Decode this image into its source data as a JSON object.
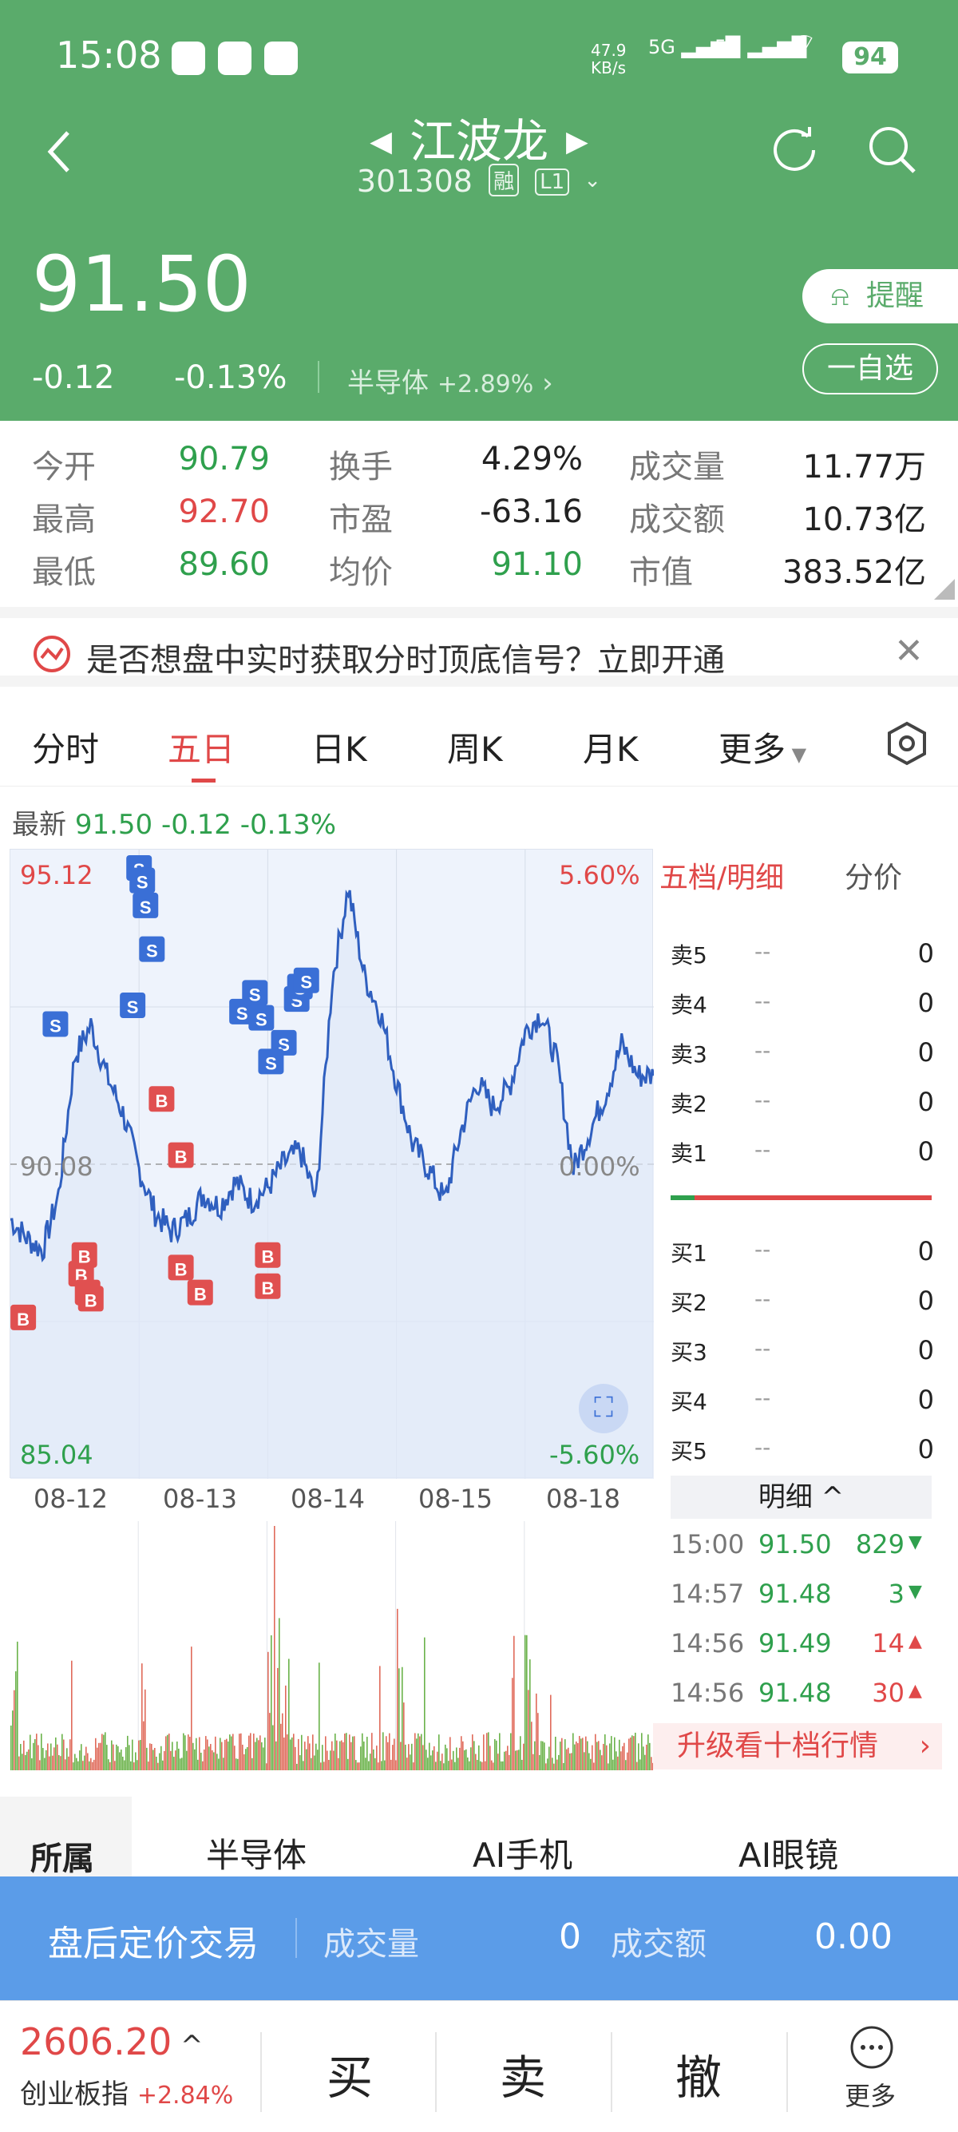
{
  "status": {
    "time": "15:08",
    "net_speed": "47.9\nKB/s",
    "net_speed_top": "47.9",
    "net_speed_bot": "KB/s",
    "signal1": "5G",
    "signal2": "5G",
    "battery": "94"
  },
  "header": {
    "name": "江波龙",
    "code": "301308",
    "tag_margin": "融",
    "tag_level": "L1",
    "price": "91.50",
    "change": "-0.12",
    "change_pct": "-0.13%",
    "sector_name": "半导体",
    "sector_change": "+2.89%",
    "remind_label": "提醒",
    "watch_label": "一自选"
  },
  "stats": {
    "row1": {
      "l1": "今开",
      "v1": "90.79",
      "l2": "换手",
      "v2": "4.29%",
      "l3": "成交量",
      "v3": "11.77万"
    },
    "row2": {
      "l1": "最高",
      "v1": "92.70",
      "l2": "市盈",
      "v2": "-63.16",
      "l3": "成交额",
      "v3": "10.73亿"
    },
    "row3": {
      "l1": "最低",
      "v1": "89.60",
      "l2": "均价",
      "v2": "91.10",
      "l3": "市值",
      "v3": "383.52亿"
    }
  },
  "banner": {
    "text": "是否想盘中实时获取分时顶底信号？立即开通"
  },
  "tabs": [
    "分时",
    "五日",
    "日K",
    "周K",
    "月K",
    "更多"
  ],
  "latest": {
    "label": "最新",
    "price": "91.50",
    "change": "-0.12",
    "pct": "-0.13%"
  },
  "chart_data": {
    "type": "line",
    "y_max": "95.12",
    "y_mid": "90.08",
    "y_min": "85.04",
    "pct_max": "5.60%",
    "pct_mid": "0.00%",
    "pct_min": "-5.60%",
    "ylim": [
      85.04,
      95.12
    ],
    "dates": [
      "08-12",
      "08-13",
      "08-14",
      "08-15",
      "08-18"
    ],
    "x": [
      0,
      5,
      10,
      15,
      20,
      25,
      30,
      35,
      40,
      45,
      50,
      55,
      60,
      65,
      70,
      75,
      80,
      85,
      90,
      95,
      100,
      105,
      110,
      115,
      120,
      125,
      130,
      135,
      140,
      145,
      150,
      155,
      160,
      165,
      170,
      175,
      180,
      185,
      190,
      195,
      200
    ],
    "values": [
      89.2,
      88.9,
      88.7,
      89.6,
      91.8,
      92.3,
      91.5,
      90.9,
      90.0,
      89.3,
      89.0,
      89.2,
      89.6,
      89.4,
      89.8,
      89.5,
      89.7,
      90.1,
      90.3,
      89.5,
      93.0,
      94.5,
      93.1,
      92.5,
      91.4,
      90.4,
      90.0,
      89.5,
      90.6,
      91.4,
      91.0,
      91.3,
      92.2,
      92.5,
      91.7,
      90.0,
      90.6,
      91.2,
      92.0,
      91.5,
      91.5
    ],
    "buy_signals": 10,
    "sell_signals": 14,
    "avg_line": 90.08
  },
  "orderbook": {
    "header_active": "五档/明细",
    "header_other": "分价",
    "sells": [
      {
        "label": "卖5",
        "price": "--",
        "qty": "0"
      },
      {
        "label": "卖4",
        "price": "--",
        "qty": "0"
      },
      {
        "label": "卖3",
        "price": "--",
        "qty": "0"
      },
      {
        "label": "卖2",
        "price": "--",
        "qty": "0"
      },
      {
        "label": "卖1",
        "price": "--",
        "qty": "0"
      }
    ],
    "buys": [
      {
        "label": "买1",
        "price": "--",
        "qty": "0"
      },
      {
        "label": "买2",
        "price": "--",
        "qty": "0"
      },
      {
        "label": "买3",
        "price": "--",
        "qty": "0"
      },
      {
        "label": "买4",
        "price": "--",
        "qty": "0"
      },
      {
        "label": "买5",
        "price": "--",
        "qty": "0"
      }
    ],
    "detail_label": "明细",
    "ticks": [
      {
        "time": "15:00",
        "price": "91.50",
        "qty": "829",
        "dir": "down"
      },
      {
        "time": "14:57",
        "price": "91.48",
        "qty": "3",
        "dir": "down"
      },
      {
        "time": "14:56",
        "price": "91.49",
        "qty": "14",
        "dir": "up"
      },
      {
        "time": "14:56",
        "price": "91.48",
        "qty": "30",
        "dir": "up"
      }
    ],
    "upgrade": "升级看十档行情"
  },
  "sectors": {
    "label": "所属",
    "items": [
      "半导体",
      "AI手机",
      "AI眼镜"
    ]
  },
  "afterhours": {
    "title": "盘后定价交易",
    "vol_label": "成交量",
    "vol": "0",
    "amt_label": "成交额",
    "amt": "0.00"
  },
  "bottom": {
    "index_value": "2606.20",
    "index_name": "创业板指",
    "index_change": "+2.84%",
    "buy": "买",
    "sell": "卖",
    "cancel": "撤",
    "more": "更多"
  }
}
